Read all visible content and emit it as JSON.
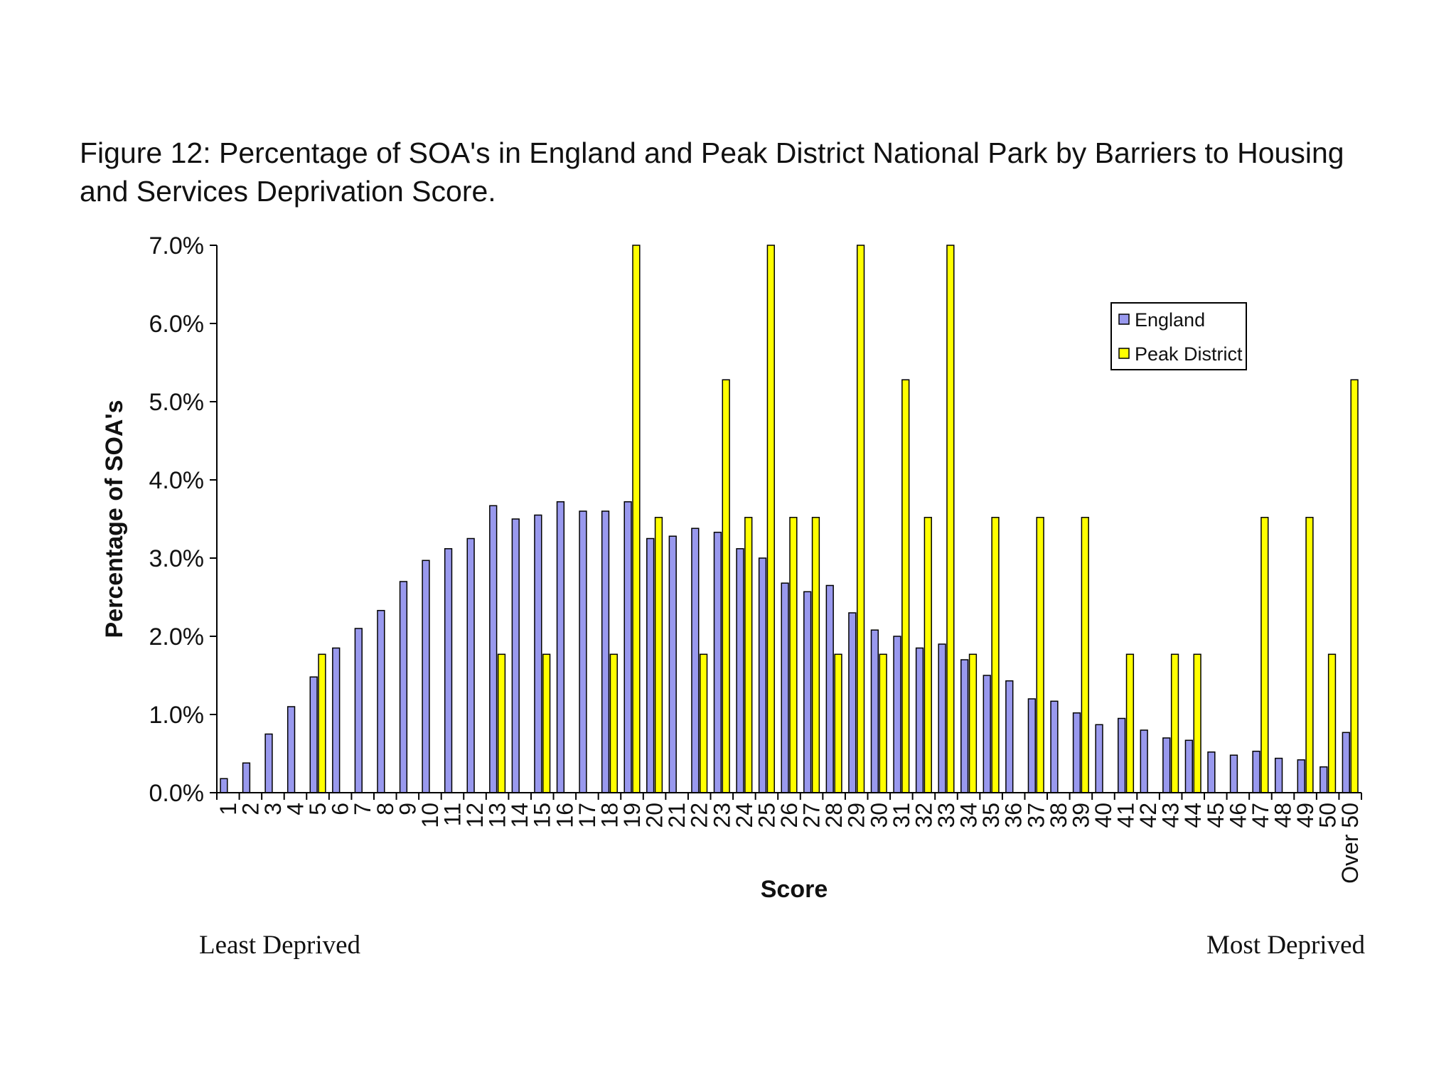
{
  "chart_data": {
    "type": "bar",
    "title": "Figure 12: Percentage of SOA's in England and Peak District National Park by Barriers to Housing and Services Deprivation Score.",
    "xlabel": "Score",
    "ylabel": "Percentage of SOA's",
    "ylim": [
      0,
      7
    ],
    "yticks": [
      "0.0%",
      "1.0%",
      "2.0%",
      "3.0%",
      "4.0%",
      "5.0%",
      "6.0%",
      "7.0%"
    ],
    "categories": [
      "1",
      "2",
      "3",
      "4",
      "5",
      "6",
      "7",
      "8",
      "9",
      "10",
      "11",
      "12",
      "13",
      "14",
      "15",
      "16",
      "17",
      "18",
      "19",
      "20",
      "21",
      "22",
      "23",
      "24",
      "25",
      "26",
      "27",
      "28",
      "29",
      "30",
      "31",
      "32",
      "33",
      "34",
      "35",
      "36",
      "37",
      "38",
      "39",
      "40",
      "41",
      "42",
      "43",
      "44",
      "45",
      "46",
      "47",
      "48",
      "49",
      "50",
      "Over 50"
    ],
    "series": [
      {
        "name": "England",
        "color": "#9999ee",
        "values": [
          0.18,
          0.38,
          0.75,
          1.1,
          1.48,
          1.85,
          2.1,
          2.33,
          2.7,
          2.97,
          3.12,
          3.25,
          3.67,
          3.5,
          3.55,
          3.72,
          3.6,
          3.6,
          3.72,
          3.25,
          3.28,
          3.38,
          3.33,
          3.12,
          3.0,
          2.68,
          2.57,
          2.65,
          2.3,
          2.08,
          2.0,
          1.85,
          1.9,
          1.7,
          1.5,
          1.43,
          1.2,
          1.17,
          1.02,
          0.87,
          0.95,
          0.8,
          0.7,
          0.67,
          0.52,
          0.48,
          0.53,
          0.44,
          0.42,
          0.33,
          0.77
        ]
      },
      {
        "name": "Peak District",
        "color": "#ffff00",
        "values": [
          0,
          0,
          0,
          0,
          1.77,
          0,
          0,
          0,
          0,
          0,
          0,
          0,
          1.77,
          0,
          1.77,
          0,
          0,
          1.77,
          7.0,
          3.52,
          0,
          1.77,
          5.28,
          3.52,
          7.0,
          3.52,
          3.52,
          1.77,
          7.0,
          1.77,
          5.28,
          3.52,
          7.0,
          1.77,
          3.52,
          0,
          3.52,
          0,
          3.52,
          0,
          1.77,
          0,
          1.77,
          1.77,
          0,
          0,
          3.52,
          0,
          3.52,
          1.77,
          5.28
        ]
      }
    ],
    "legend": "top-right",
    "annotations": {
      "left": "Least Deprived",
      "right": "Most Deprived"
    }
  }
}
